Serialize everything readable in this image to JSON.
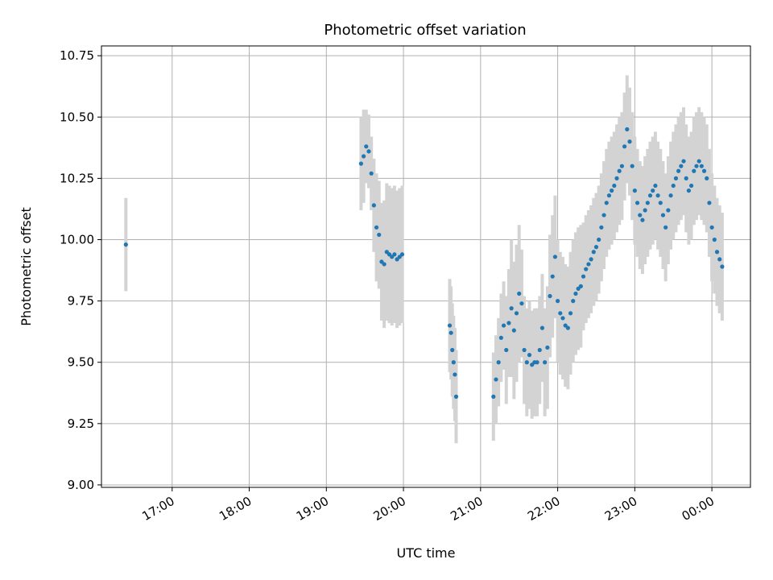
{
  "chart_data": {
    "type": "scatter",
    "title": "Photometric offset variation",
    "xlabel": "UTC time",
    "ylabel": "Photometric offset",
    "grid": true,
    "xlim": [
      "16:05",
      "00:30"
    ],
    "ylim": [
      8.99,
      10.79
    ],
    "x_ticks": [
      "17:00",
      "18:00",
      "19:00",
      "20:00",
      "21:00",
      "22:00",
      "23:00",
      "00:00"
    ],
    "y_ticks": [
      "9.00",
      "9.25",
      "9.50",
      "9.75",
      "10.00",
      "10.25",
      "10.50",
      "10.75"
    ],
    "colors": {
      "point": "#1f77b4",
      "errorbar": "#d3d3d3",
      "grid": "#b0b0b0"
    },
    "series": [
      {
        "x": [
          "16:24",
          "19:27",
          "19:29",
          "19:31",
          "19:33",
          "19:35",
          "19:37",
          "19:39",
          "19:41",
          "19:43",
          "19:45",
          "19:47",
          "19:49",
          "19:51",
          "19:53",
          "19:55",
          "19:57",
          "19:59",
          "20:36",
          "20:37",
          "20:38",
          "20:39",
          "20:40",
          "20:41",
          "21:10",
          "21:12",
          "21:14",
          "21:16",
          "21:18",
          "21:20",
          "21:22",
          "21:24",
          "21:26",
          "21:28",
          "21:30",
          "21:32",
          "21:34",
          "21:36",
          "21:38",
          "21:40",
          "21:42",
          "21:44",
          "21:46",
          "21:48",
          "21:50",
          "21:52",
          "21:54",
          "21:56",
          "21:58",
          "22:00",
          "22:02",
          "22:04",
          "22:06",
          "22:08",
          "22:10",
          "22:12",
          "22:14",
          "22:16",
          "22:18",
          "22:20",
          "22:22",
          "22:24",
          "22:26",
          "22:28",
          "22:30",
          "22:32",
          "22:34",
          "22:36",
          "22:38",
          "22:40",
          "22:42",
          "22:44",
          "22:46",
          "22:48",
          "22:50",
          "22:52",
          "22:54",
          "22:56",
          "22:58",
          "23:00",
          "23:02",
          "23:04",
          "23:06",
          "23:08",
          "23:10",
          "23:12",
          "23:14",
          "23:16",
          "23:18",
          "23:20",
          "23:22",
          "23:24",
          "23:26",
          "23:28",
          "23:30",
          "23:32",
          "23:34",
          "23:36",
          "23:38",
          "23:40",
          "23:42",
          "23:44",
          "23:46",
          "23:48",
          "23:50",
          "23:52",
          "23:54",
          "23:56",
          "23:58",
          "00:00",
          "00:02",
          "00:04",
          "00:06",
          "00:08"
        ],
        "y": [
          9.98,
          10.31,
          10.34,
          10.38,
          10.36,
          10.27,
          10.14,
          10.05,
          10.02,
          9.91,
          9.9,
          9.95,
          9.94,
          9.93,
          9.94,
          9.92,
          9.93,
          9.94,
          9.65,
          9.62,
          9.55,
          9.5,
          9.45,
          9.36,
          9.36,
          9.43,
          9.5,
          9.6,
          9.65,
          9.55,
          9.66,
          9.72,
          9.63,
          9.7,
          9.78,
          9.74,
          9.55,
          9.5,
          9.53,
          9.49,
          9.5,
          9.5,
          9.55,
          9.64,
          9.5,
          9.56,
          9.77,
          9.85,
          9.93,
          9.75,
          9.7,
          9.68,
          9.65,
          9.64,
          9.7,
          9.75,
          9.78,
          9.8,
          9.81,
          9.85,
          9.88,
          9.9,
          9.92,
          9.95,
          9.97,
          10.0,
          10.05,
          10.1,
          10.15,
          10.18,
          10.2,
          10.22,
          10.25,
          10.28,
          10.3,
          10.38,
          10.45,
          10.4,
          10.3,
          10.2,
          10.15,
          10.1,
          10.08,
          10.12,
          10.15,
          10.18,
          10.2,
          10.22,
          10.18,
          10.15,
          10.1,
          10.05,
          10.12,
          10.18,
          10.22,
          10.25,
          10.28,
          10.3,
          10.32,
          10.25,
          10.2,
          10.22,
          10.28,
          10.3,
          10.32,
          10.3,
          10.28,
          10.25,
          10.15,
          10.05,
          10.0,
          9.95,
          9.92,
          9.89
        ],
        "error": [
          0.19,
          0.19,
          0.19,
          0.15,
          0.15,
          0.15,
          0.19,
          0.22,
          0.22,
          0.24,
          0.26,
          0.28,
          0.28,
          0.28,
          0.28,
          0.28,
          0.28,
          0.28,
          0.19,
          0.19,
          0.19,
          0.19,
          0.19,
          0.19,
          0.18,
          0.18,
          0.18,
          0.18,
          0.18,
          0.22,
          0.22,
          0.28,
          0.28,
          0.28,
          0.28,
          0.22,
          0.22,
          0.22,
          0.22,
          0.22,
          0.22,
          0.22,
          0.22,
          0.22,
          0.22,
          0.25,
          0.25,
          0.25,
          0.25,
          0.25,
          0.25,
          0.25,
          0.25,
          0.25,
          0.25,
          0.25,
          0.25,
          0.25,
          0.25,
          0.22,
          0.22,
          0.22,
          0.22,
          0.22,
          0.22,
          0.22,
          0.22,
          0.22,
          0.22,
          0.22,
          0.22,
          0.22,
          0.22,
          0.22,
          0.22,
          0.22,
          0.22,
          0.22,
          0.22,
          0.22,
          0.22,
          0.22,
          0.22,
          0.22,
          0.22,
          0.22,
          0.22,
          0.22,
          0.22,
          0.22,
          0.22,
          0.22,
          0.22,
          0.22,
          0.22,
          0.22,
          0.22,
          0.22,
          0.22,
          0.22,
          0.22,
          0.22,
          0.22,
          0.22,
          0.22,
          0.22,
          0.22,
          0.22,
          0.22,
          0.22,
          0.22,
          0.22,
          0.22,
          0.22
        ]
      }
    ]
  }
}
